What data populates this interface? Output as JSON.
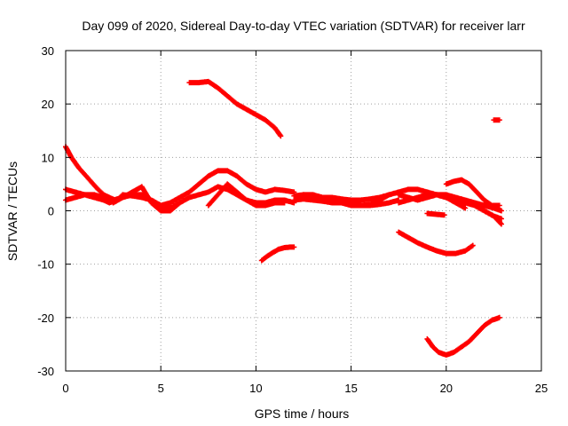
{
  "chart_data": {
    "type": "scatter",
    "title": "Day 099 of 2020, Sidereal Day-to-day VTEC variation (SDTVAR) for receiver larr",
    "xlabel": "GPS time / hours",
    "ylabel": "SDTVAR / TECUs",
    "xlim": [
      0,
      25
    ],
    "ylim": [
      -30,
      30
    ],
    "x_ticks": [
      0,
      5,
      10,
      15,
      20,
      25
    ],
    "y_ticks": [
      -30,
      -20,
      -10,
      0,
      10,
      20,
      30
    ],
    "x_tick_labels": [
      "0",
      "5",
      "10",
      "15",
      "20",
      "25"
    ],
    "y_tick_labels": [
      "-30",
      "-20",
      "-10",
      "0",
      "10",
      "20",
      "30"
    ],
    "grid": true,
    "marker_color": "#ff0000",
    "series": [
      {
        "name": "track-1",
        "x": [
          0.0,
          0.3,
          0.7,
          1.2,
          1.7,
          2.0,
          2.3,
          2.6
        ],
        "y": [
          12.0,
          10.0,
          8.0,
          6.0,
          4.0,
          3.0,
          2.5,
          2.0
        ]
      },
      {
        "name": "track-2",
        "x": [
          0.0,
          0.5,
          1.0,
          1.5,
          2.0,
          2.3,
          2.7,
          3.0,
          3.5,
          4.0,
          4.5,
          5.0,
          5.5,
          6.0,
          6.5,
          7.0,
          7.5,
          8.0,
          8.5,
          9.0,
          9.5,
          10.0,
          10.5,
          11.0,
          11.5,
          12.0
        ],
        "y": [
          4.0,
          3.5,
          3.0,
          2.5,
          2.0,
          1.5,
          2.0,
          3.0,
          2.8,
          2.5,
          2.0,
          1.0,
          1.5,
          2.5,
          3.5,
          5.0,
          6.5,
          7.5,
          7.5,
          6.5,
          5.0,
          4.0,
          3.5,
          4.0,
          3.8,
          3.5
        ]
      },
      {
        "name": "track-3",
        "x": [
          0.0,
          0.5,
          1.0,
          1.5,
          2.0,
          2.5,
          3.0,
          3.5,
          4.0,
          4.5,
          5.0,
          5.5,
          6.0,
          6.5,
          7.0,
          7.5,
          8.0,
          8.5,
          9.0,
          9.5,
          10.0,
          10.5,
          11.0,
          11.5,
          12.0
        ],
        "y": [
          2.0,
          2.5,
          3.0,
          3.0,
          2.5,
          2.0,
          2.5,
          3.0,
          3.0,
          2.0,
          1.0,
          0.5,
          1.5,
          2.5,
          3.0,
          3.5,
          4.5,
          4.0,
          3.0,
          2.0,
          1.5,
          1.5,
          2.0,
          2.0,
          1.5
        ]
      },
      {
        "name": "track-4",
        "x": [
          2.5,
          3.0,
          3.5,
          4.0,
          4.5,
          5.0,
          5.5,
          6.0
        ],
        "y": [
          1.5,
          2.5,
          3.5,
          4.5,
          1.5,
          0.0,
          0.0,
          1.5
        ]
      },
      {
        "name": "track-5",
        "x": [
          7.5,
          8.0,
          8.5,
          9.0,
          9.5,
          10.0,
          10.5,
          11.0,
          11.5
        ],
        "y": [
          1.0,
          3.0,
          5.0,
          3.5,
          2.0,
          1.0,
          1.0,
          1.5,
          1.5
        ]
      },
      {
        "name": "track-6",
        "x": [
          6.5,
          7.0,
          7.5,
          8.0,
          8.5,
          9.0,
          9.5,
          10.0,
          10.5,
          11.0,
          11.3
        ],
        "y": [
          24.0,
          24.0,
          24.2,
          23.0,
          21.5,
          20.0,
          19.0,
          18.0,
          17.0,
          15.5,
          14.0
        ]
      },
      {
        "name": "track-7",
        "x": [
          10.3,
          10.6,
          10.9,
          11.2,
          11.5,
          11.8,
          12.0
        ],
        "y": [
          -9.3,
          -8.5,
          -7.8,
          -7.2,
          -6.9,
          -6.8,
          -6.8
        ]
      },
      {
        "name": "track-8",
        "x": [
          12.0,
          12.5,
          13.0,
          13.5,
          14.0,
          14.5,
          15.0,
          15.5,
          16.0,
          16.5,
          17.0,
          17.5,
          18.0,
          18.5,
          19.0,
          19.5,
          20.0,
          20.5,
          21.0,
          21.5,
          22.0,
          22.5,
          22.9
        ],
        "y": [
          2.8,
          3.0,
          2.8,
          2.5,
          2.5,
          2.2,
          2.0,
          2.0,
          2.2,
          2.5,
          3.0,
          3.5,
          4.0,
          4.0,
          3.5,
          3.0,
          3.0,
          2.5,
          2.0,
          1.5,
          1.0,
          0.5,
          0.0
        ]
      },
      {
        "name": "track-9",
        "x": [
          12.0,
          12.5,
          13.0,
          13.5,
          14.0,
          14.5,
          15.0,
          15.5,
          16.0,
          16.5,
          17.0,
          17.5
        ],
        "y": [
          2.0,
          2.2,
          2.0,
          1.8,
          1.5,
          1.5,
          1.2,
          1.0,
          1.0,
          1.2,
          1.5,
          2.0
        ]
      },
      {
        "name": "track-10",
        "x": [
          12.5,
          13.0,
          13.5,
          14.0,
          14.5,
          15.0,
          15.5,
          16.0,
          16.5,
          17.0
        ],
        "y": [
          3.0,
          3.0,
          2.5,
          2.0,
          1.5,
          1.0,
          1.0,
          1.2,
          2.0,
          3.0
        ]
      },
      {
        "name": "track-11",
        "x": [
          17.5,
          18.0,
          18.5,
          19.0,
          19.5,
          20.0,
          20.5,
          21.0,
          21.5,
          22.0,
          22.5,
          22.9
        ],
        "y": [
          3.0,
          2.5,
          2.0,
          2.5,
          3.0,
          2.5,
          2.0,
          1.5,
          1.0,
          0.0,
          -1.0,
          -2.5
        ]
      },
      {
        "name": "track-12",
        "x": [
          17.5,
          18.0,
          18.5,
          19.0,
          19.5,
          20.0,
          20.5,
          21.0
        ],
        "y": [
          1.5,
          2.0,
          2.5,
          3.0,
          3.0,
          2.5,
          1.5,
          0.5
        ]
      },
      {
        "name": "track-13",
        "x": [
          19.0,
          19.3,
          19.6,
          19.9
        ],
        "y": [
          -0.5,
          -0.6,
          -0.7,
          -0.8
        ]
      },
      {
        "name": "track-14",
        "x": [
          20.0,
          20.4,
          20.8,
          21.2,
          21.6,
          22.0,
          22.4,
          22.8
        ],
        "y": [
          5.0,
          5.5,
          5.8,
          5.0,
          3.5,
          2.0,
          1.0,
          1.0
        ]
      },
      {
        "name": "track-15",
        "x": [
          21.0,
          21.5,
          22.0,
          22.5,
          22.9
        ],
        "y": [
          2.0,
          1.0,
          0.0,
          -1.0,
          -1.5
        ]
      },
      {
        "name": "track-16",
        "x": [
          17.5,
          18.0,
          18.5,
          19.0,
          19.5,
          20.0,
          20.5,
          21.0,
          21.4
        ],
        "y": [
          -4.0,
          -5.0,
          -6.0,
          -6.8,
          -7.5,
          -8.0,
          -8.0,
          -7.5,
          -6.5
        ]
      },
      {
        "name": "track-17",
        "x": [
          22.5,
          22.8
        ],
        "y": [
          17.0,
          17.0
        ]
      },
      {
        "name": "track-18",
        "x": [
          19.0,
          19.3,
          19.6,
          20.0,
          20.4,
          20.8,
          21.2,
          21.6,
          22.0,
          22.4,
          22.8
        ],
        "y": [
          -24.0,
          -25.5,
          -26.5,
          -27.0,
          -26.5,
          -25.5,
          -24.5,
          -23.0,
          -21.5,
          -20.5,
          -20.0
        ]
      }
    ]
  }
}
